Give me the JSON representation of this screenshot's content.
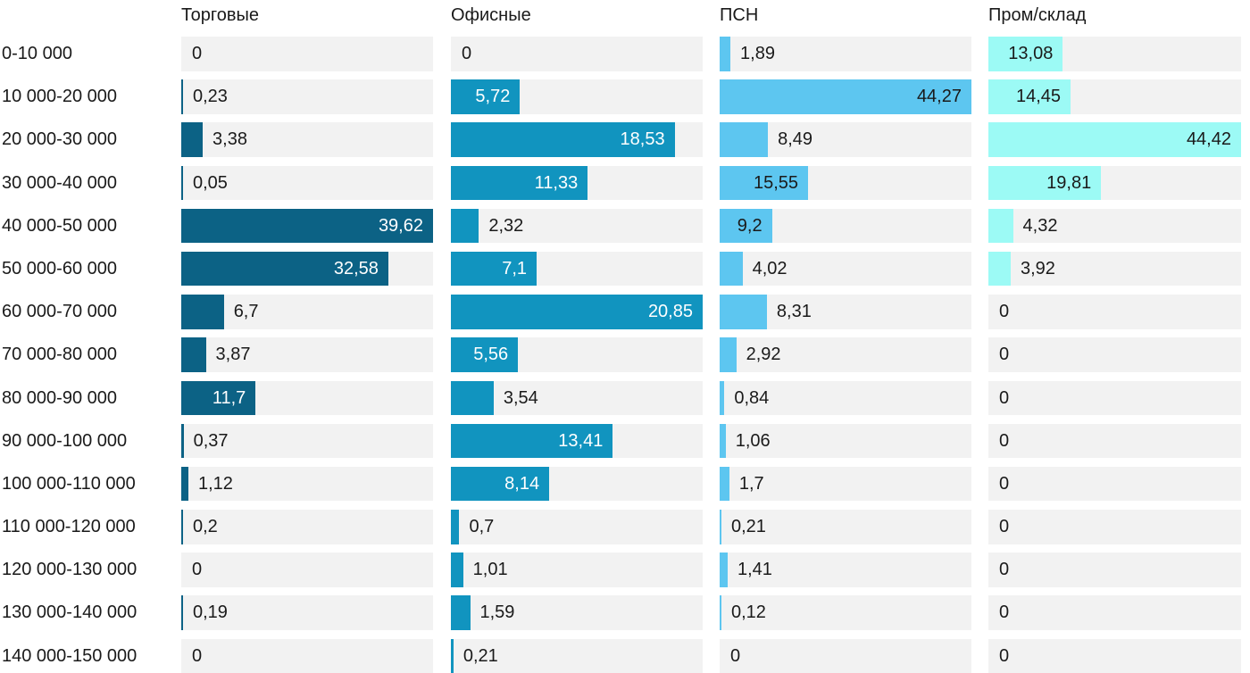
{
  "chart_data": {
    "type": "bar",
    "orientation": "horizontal",
    "title": "",
    "xlabel": "",
    "ylabel": "",
    "grid": false,
    "legend_position": "column-headers-top",
    "scaling": "each column scaled independently to its own maximum value",
    "track_color": "#F2F2F2",
    "text_color": "#1A1A1A",
    "categories": [
      "0-10 000",
      "10 000-20 000",
      "20 000-30 000",
      "30 000-40 000",
      "40 000-50 000",
      "50 000-60 000",
      "60 000-70 000",
      "70 000-80 000",
      "80 000-90 000",
      "90 000-100 000",
      "100 000-110 000",
      "110 000-120 000",
      "120 000-130 000",
      "130 000-140 000",
      "140 000-150 000"
    ],
    "series": [
      {
        "name": "Торговые",
        "color": "#0C6285",
        "inside_label_color": "#FFFFFF",
        "values": [
          0,
          0.23,
          3.38,
          0.05,
          39.62,
          32.58,
          6.7,
          3.87,
          11.7,
          0.37,
          1.12,
          0.2,
          0,
          0.19,
          0
        ]
      },
      {
        "name": "Офисные",
        "color": "#1194BF",
        "inside_label_color": "#FFFFFF",
        "values": [
          0,
          5.72,
          18.53,
          11.33,
          2.32,
          7.1,
          20.85,
          5.56,
          3.54,
          13.41,
          8.14,
          0.7,
          1.01,
          1.59,
          0.21
        ]
      },
      {
        "name": "ПСН",
        "color": "#5DC6F0",
        "inside_label_color": "#1A1A1A",
        "values": [
          1.89,
          44.27,
          8.49,
          15.55,
          9.2,
          4.02,
          8.31,
          2.92,
          0.84,
          1.06,
          1.7,
          0.21,
          1.41,
          0.12,
          0
        ]
      },
      {
        "name": "Пром/склад",
        "color": "#9CFAF5",
        "inside_label_color": "#1A1A1A",
        "values": [
          13.08,
          14.45,
          44.42,
          19.81,
          4.32,
          3.92,
          0,
          0,
          0,
          0,
          0,
          0,
          0,
          0,
          0
        ]
      }
    ],
    "value_label_decimal_separator": ","
  }
}
